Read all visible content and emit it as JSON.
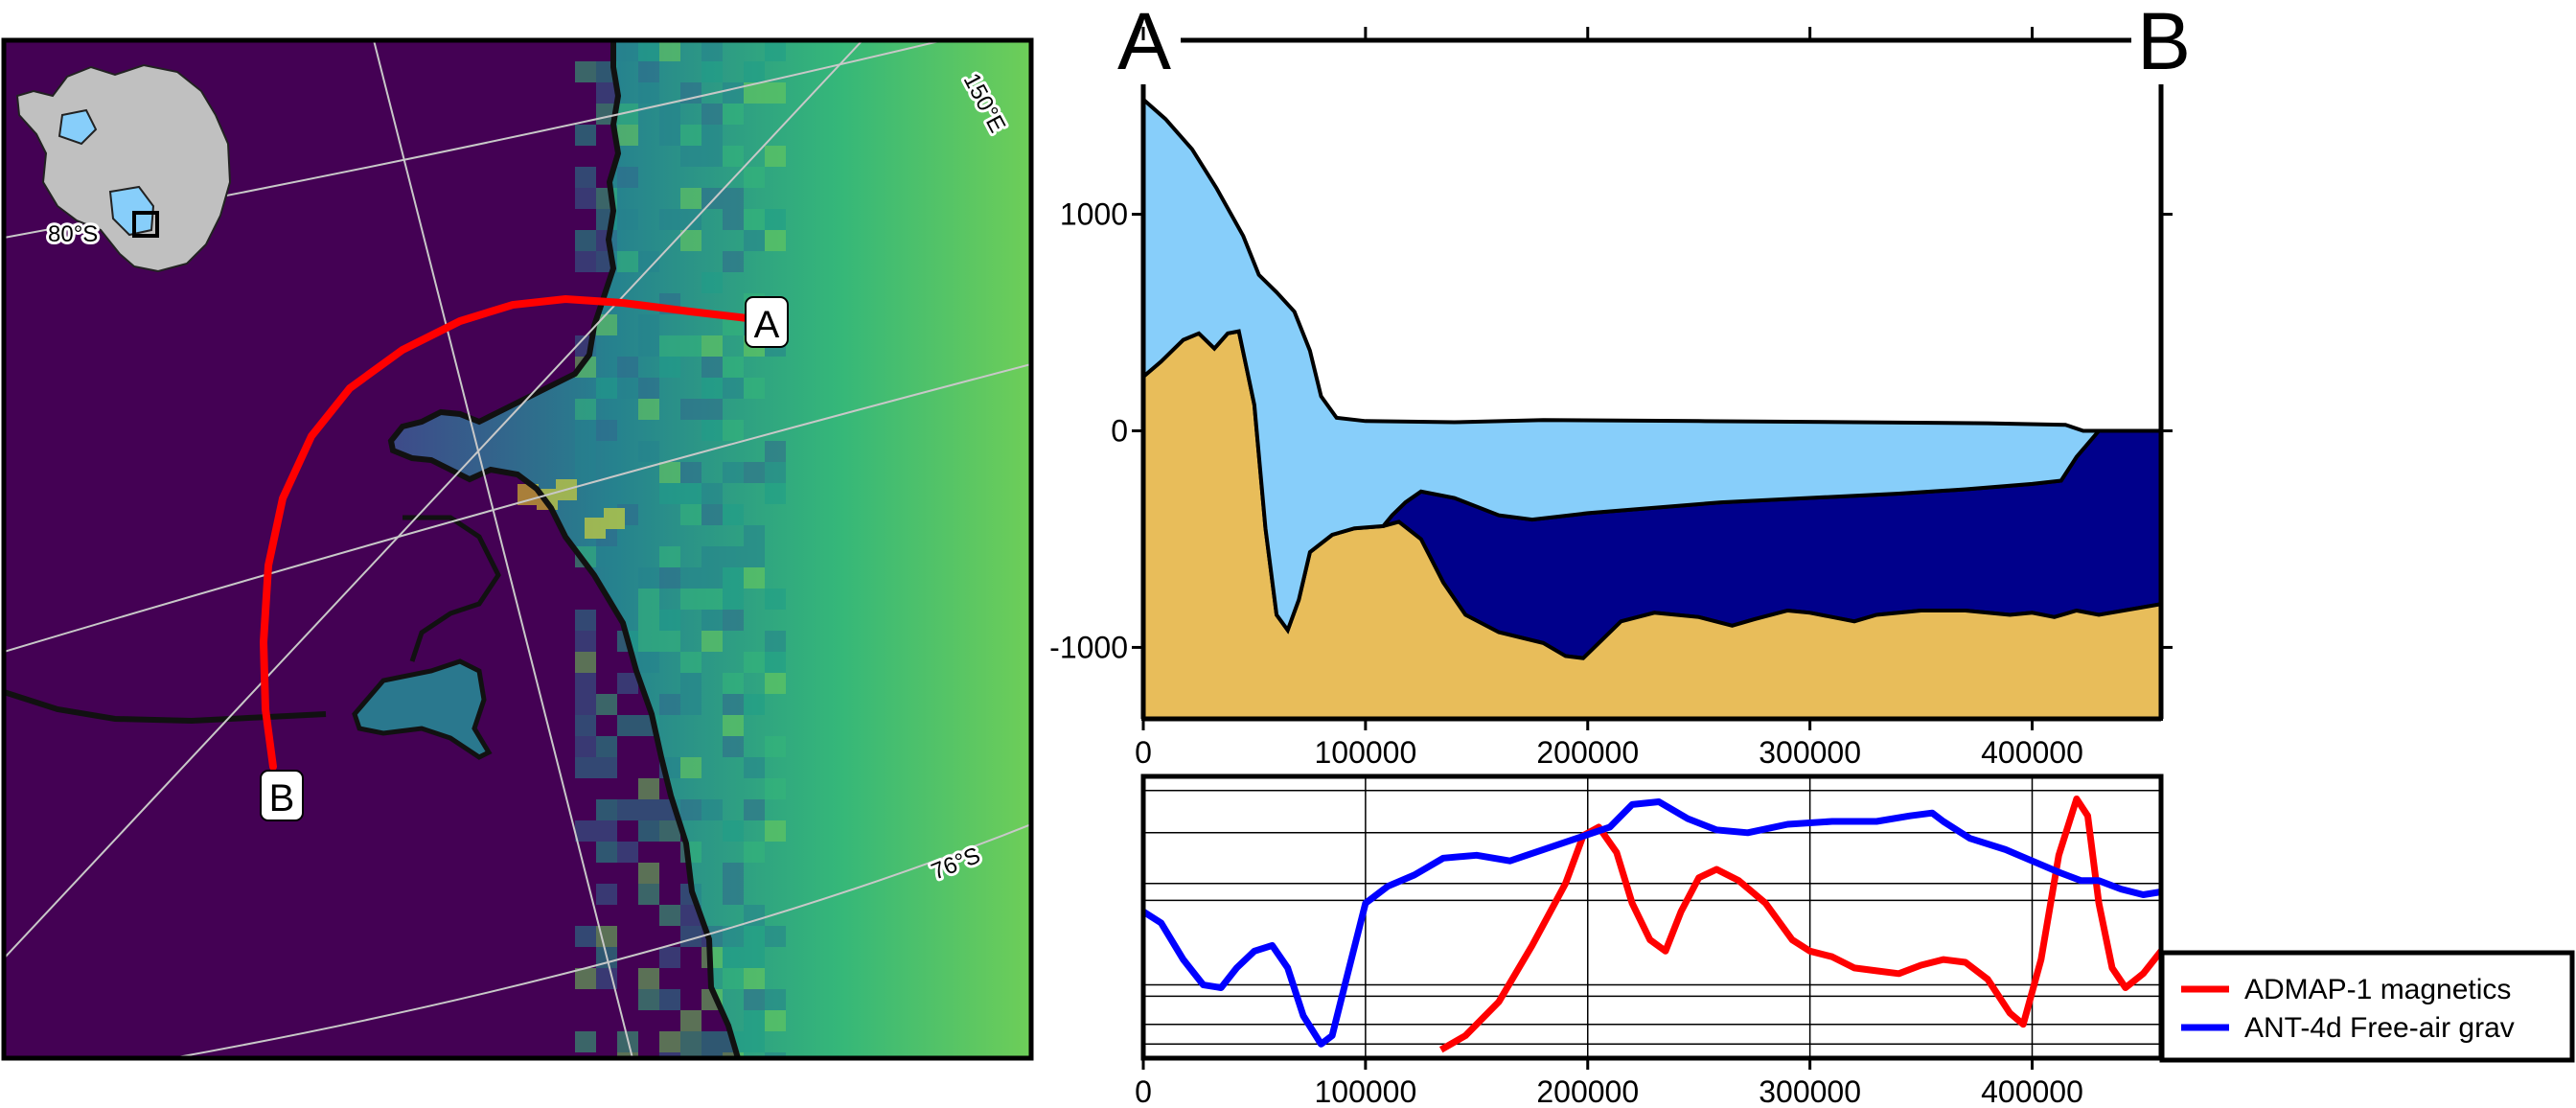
{
  "colors": {
    "ice": "#87cefa",
    "water": "#00008b",
    "bed": "#e8bd5a",
    "map_low": "#440154",
    "map_high": "#7ad151",
    "profile_line": "#ff0000",
    "magnetics": "#ff0000",
    "gravity": "#0000ff",
    "inset_land": "#c0c0c0",
    "inset_ice": "#87cefa"
  },
  "map": {
    "graticule_labels": {
      "lon": "150°E",
      "lat_inset": "80°S",
      "lat_main": "76°S"
    },
    "profile_start_label": "A",
    "profile_end_label": "B"
  },
  "profile_header": {
    "left": "A",
    "right": "B"
  },
  "chart_data": [
    {
      "type": "area",
      "panel": "cross-section",
      "xlim": [
        0,
        458000
      ],
      "ylim": [
        -1330,
        1600
      ],
      "x_ticks": [
        0,
        100000,
        200000,
        300000,
        400000
      ],
      "x_tick_labels": [
        "0",
        "100000",
        "200000",
        "300000",
        "400000"
      ],
      "y_ticks": [
        1000,
        0,
        -1000
      ],
      "y_tick_labels": [
        "1000",
        "0",
        "-1000"
      ],
      "layers": {
        "surface": [
          [
            0,
            1530
          ],
          [
            10000,
            1440
          ],
          [
            22000,
            1300
          ],
          [
            33000,
            1120
          ],
          [
            45000,
            900
          ],
          [
            52000,
            720
          ],
          [
            60000,
            640
          ],
          [
            68000,
            550
          ],
          [
            75000,
            370
          ],
          [
            80000,
            160
          ],
          [
            87000,
            60
          ],
          [
            100000,
            45
          ],
          [
            140000,
            40
          ],
          [
            180000,
            50
          ],
          [
            250000,
            45
          ],
          [
            320000,
            40
          ],
          [
            380000,
            35
          ],
          [
            415000,
            28
          ],
          [
            423000,
            0
          ],
          [
            458000,
            0
          ]
        ],
        "ice_base": [
          [
            0,
            1530
          ],
          [
            10000,
            1440
          ],
          [
            22000,
            1300
          ],
          [
            33000,
            1120
          ],
          [
            45000,
            900
          ],
          [
            52000,
            720
          ],
          [
            60000,
            640
          ],
          [
            68000,
            550
          ],
          [
            75000,
            370
          ],
          [
            80000,
            160
          ],
          [
            87000,
            60
          ],
          [
            100000,
            45
          ],
          [
            140000,
            40
          ],
          [
            180000,
            50
          ],
          [
            250000,
            45
          ],
          [
            320000,
            40
          ],
          [
            380000,
            35
          ],
          [
            415000,
            20
          ],
          [
            420000,
            -20
          ],
          [
            425000,
            -80
          ],
          [
            430000,
            -150
          ],
          [
            437000,
            -210
          ],
          [
            443000,
            -180
          ],
          [
            450000,
            -150
          ],
          [
            458000,
            -140
          ]
        ],
        "ice_bottom": [
          [
            0,
            250
          ],
          [
            8000,
            320
          ],
          [
            18000,
            420
          ],
          [
            25000,
            450
          ],
          [
            32000,
            380
          ],
          [
            38000,
            450
          ],
          [
            43000,
            460
          ],
          [
            50000,
            120
          ],
          [
            55000,
            -450
          ],
          [
            60000,
            -850
          ],
          [
            65000,
            -920
          ],
          [
            70000,
            -780
          ],
          [
            75000,
            -560
          ],
          [
            85000,
            -480
          ],
          [
            95000,
            -450
          ],
          [
            108000,
            -440
          ],
          [
            112000,
            -390
          ],
          [
            118000,
            -330
          ],
          [
            125000,
            -280
          ],
          [
            140000,
            -310
          ],
          [
            160000,
            -390
          ],
          [
            175000,
            -410
          ],
          [
            200000,
            -380
          ],
          [
            230000,
            -355
          ],
          [
            260000,
            -330
          ],
          [
            300000,
            -310
          ],
          [
            340000,
            -290
          ],
          [
            370000,
            -270
          ],
          [
            400000,
            -245
          ],
          [
            413000,
            -230
          ],
          [
            420000,
            -120
          ],
          [
            425000,
            -60
          ],
          [
            430000,
            0
          ]
        ],
        "bed": [
          [
            0,
            250
          ],
          [
            8000,
            320
          ],
          [
            18000,
            420
          ],
          [
            25000,
            450
          ],
          [
            32000,
            380
          ],
          [
            38000,
            450
          ],
          [
            43000,
            460
          ],
          [
            50000,
            120
          ],
          [
            55000,
            -450
          ],
          [
            60000,
            -850
          ],
          [
            65000,
            -920
          ],
          [
            70000,
            -780
          ],
          [
            75000,
            -560
          ],
          [
            85000,
            -480
          ],
          [
            95000,
            -450
          ],
          [
            108000,
            -440
          ],
          [
            115000,
            -420
          ],
          [
            125000,
            -500
          ],
          [
            135000,
            -700
          ],
          [
            145000,
            -850
          ],
          [
            160000,
            -930
          ],
          [
            180000,
            -980
          ],
          [
            190000,
            -1040
          ],
          [
            198000,
            -1050
          ],
          [
            205000,
            -980
          ],
          [
            215000,
            -880
          ],
          [
            230000,
            -840
          ],
          [
            250000,
            -860
          ],
          [
            265000,
            -900
          ],
          [
            275000,
            -870
          ],
          [
            290000,
            -830
          ],
          [
            300000,
            -840
          ],
          [
            310000,
            -860
          ],
          [
            320000,
            -880
          ],
          [
            330000,
            -850
          ],
          [
            350000,
            -830
          ],
          [
            370000,
            -830
          ],
          [
            390000,
            -850
          ],
          [
            400000,
            -840
          ],
          [
            410000,
            -860
          ],
          [
            420000,
            -830
          ],
          [
            430000,
            -850
          ],
          [
            458000,
            -800
          ]
        ]
      }
    },
    {
      "type": "line",
      "panel": "geophysics",
      "xlim": [
        0,
        458000
      ],
      "x_ticks": [
        0,
        100000,
        200000,
        300000,
        400000
      ],
      "x_tick_labels": [
        "0",
        "100000",
        "200000",
        "300000",
        "400000"
      ],
      "legend_position": "bottom-right, outside",
      "series": [
        {
          "name": "ADMAP-1 magnetics",
          "points": [
            [
              134000,
              0.03
            ],
            [
              145000,
              0.08
            ],
            [
              160000,
              0.2
            ],
            [
              175000,
              0.4
            ],
            [
              190000,
              0.62
            ],
            [
              198000,
              0.79
            ],
            [
              205000,
              0.82
            ],
            [
              213000,
              0.73
            ],
            [
              220000,
              0.55
            ],
            [
              228000,
              0.42
            ],
            [
              235000,
              0.38
            ],
            [
              242000,
              0.52
            ],
            [
              250000,
              0.64
            ],
            [
              258000,
              0.67
            ],
            [
              268000,
              0.63
            ],
            [
              280000,
              0.55
            ],
            [
              292000,
              0.42
            ],
            [
              300000,
              0.38
            ],
            [
              310000,
              0.36
            ],
            [
              320000,
              0.32
            ],
            [
              330000,
              0.31
            ],
            [
              340000,
              0.3
            ],
            [
              350000,
              0.33
            ],
            [
              360000,
              0.35
            ],
            [
              370000,
              0.34
            ],
            [
              380000,
              0.28
            ],
            [
              390000,
              0.16
            ],
            [
              396000,
              0.12
            ],
            [
              404000,
              0.35
            ],
            [
              412000,
              0.72
            ],
            [
              420000,
              0.92
            ],
            [
              425000,
              0.86
            ],
            [
              430000,
              0.55
            ],
            [
              436000,
              0.32
            ],
            [
              442000,
              0.25
            ],
            [
              450000,
              0.3
            ],
            [
              458000,
              0.38
            ]
          ]
        },
        {
          "name": "ANT-4d Free-air grav",
          "points": [
            [
              0,
              0.52
            ],
            [
              8000,
              0.48
            ],
            [
              18000,
              0.35
            ],
            [
              27000,
              0.26
            ],
            [
              35000,
              0.25
            ],
            [
              42000,
              0.32
            ],
            [
              50000,
              0.38
            ],
            [
              58000,
              0.4
            ],
            [
              65000,
              0.32
            ],
            [
              72000,
              0.15
            ],
            [
              80000,
              0.05
            ],
            [
              85000,
              0.08
            ],
            [
              92000,
              0.3
            ],
            [
              100000,
              0.55
            ],
            [
              110000,
              0.61
            ],
            [
              122000,
              0.65
            ],
            [
              135000,
              0.71
            ],
            [
              150000,
              0.72
            ],
            [
              165000,
              0.7
            ],
            [
              180000,
              0.74
            ],
            [
              195000,
              0.78
            ],
            [
              210000,
              0.82
            ],
            [
              220000,
              0.9
            ],
            [
              232000,
              0.91
            ],
            [
              245000,
              0.85
            ],
            [
              258000,
              0.81
            ],
            [
              272000,
              0.8
            ],
            [
              290000,
              0.83
            ],
            [
              310000,
              0.84
            ],
            [
              330000,
              0.84
            ],
            [
              345000,
              0.86
            ],
            [
              355000,
              0.87
            ],
            [
              360000,
              0.84
            ],
            [
              372000,
              0.78
            ],
            [
              388000,
              0.74
            ],
            [
              400000,
              0.7
            ],
            [
              412000,
              0.66
            ],
            [
              422000,
              0.63
            ],
            [
              430000,
              0.63
            ],
            [
              440000,
              0.6
            ],
            [
              450000,
              0.58
            ],
            [
              458000,
              0.59
            ]
          ]
        }
      ]
    }
  ]
}
